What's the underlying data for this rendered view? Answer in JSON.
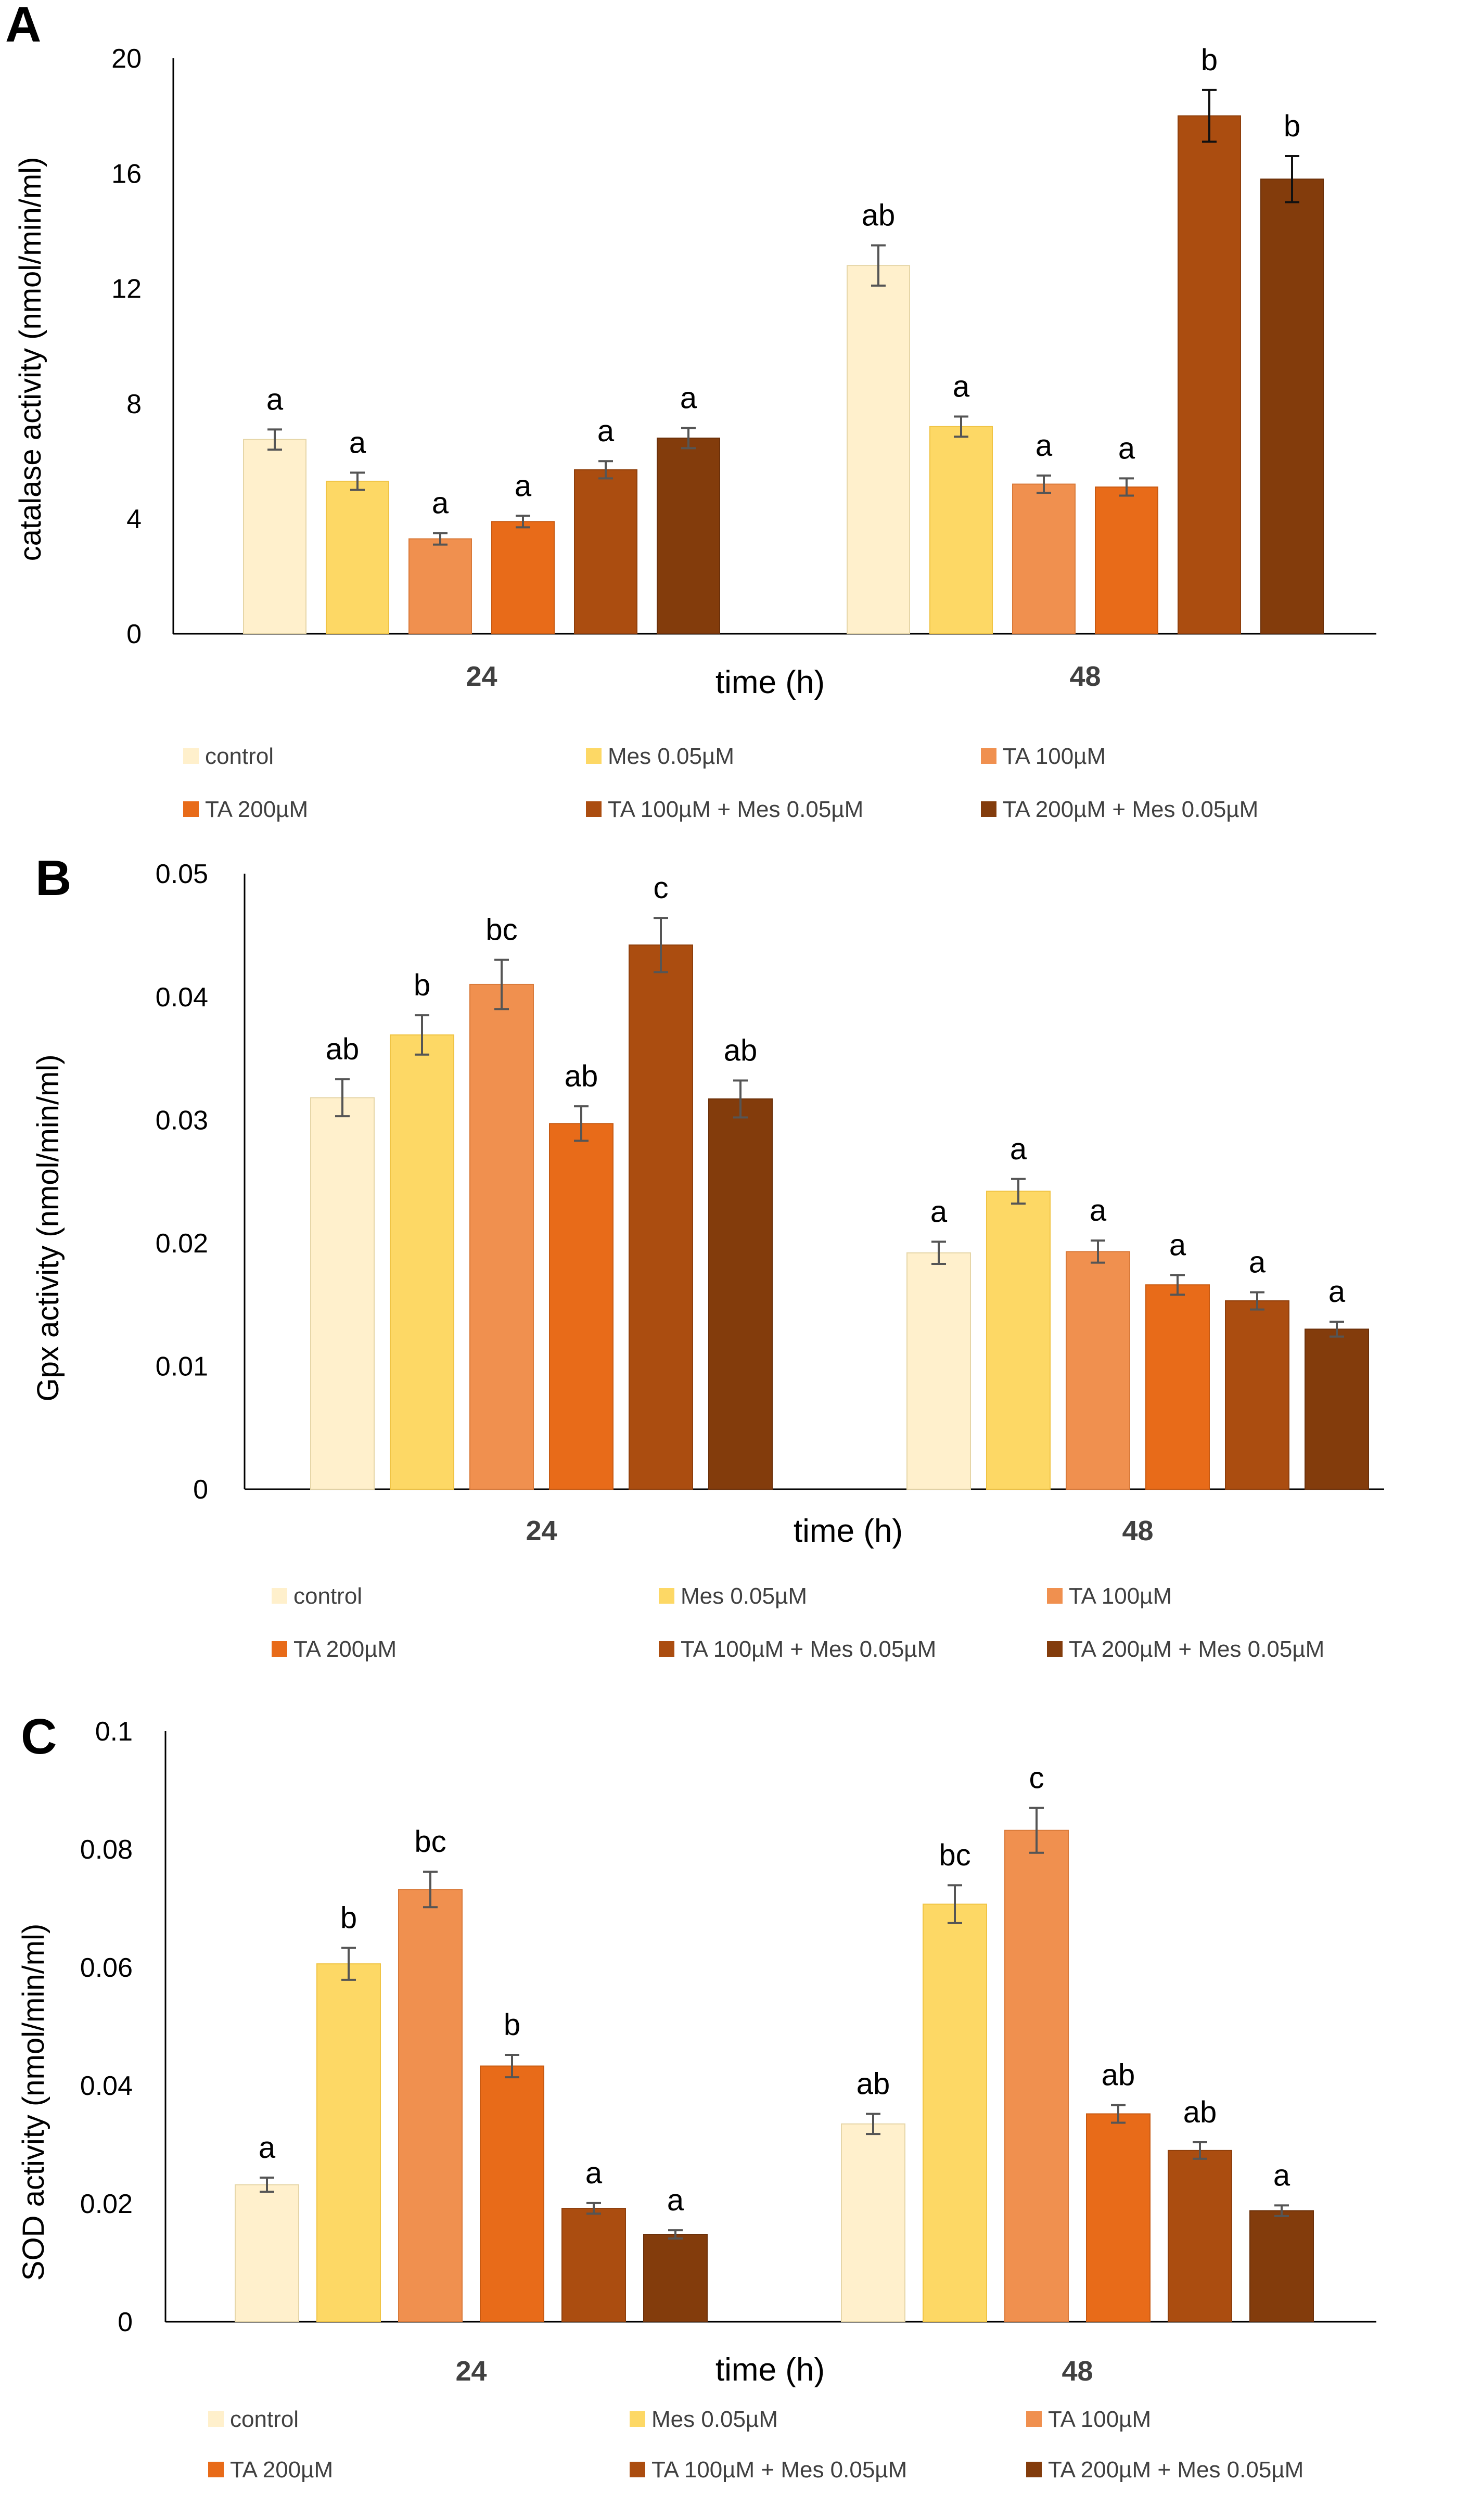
{
  "colors": {
    "control": "#fff0cc",
    "mes": "#fdd865",
    "ta100": "#f0904f",
    "ta200": "#e86b19",
    "ta100mes": "#ab4d10",
    "ta200mes": "#833c0c",
    "axis": "#000000",
    "error_bar": "#555555",
    "text": "#000000"
  },
  "legend": {
    "entries": [
      "control",
      "Mes 0.05µM",
      "TA 100µM",
      "TA 200µM",
      "TA 100µM + Mes 0.05µM",
      "TA 200µM + Mes 0.05µM"
    ]
  },
  "chart_data": [
    {
      "panel": "A",
      "type": "bar",
      "title": "",
      "xlabel": "time (h)",
      "ylabel": "catalase activity (nmol/min/ml)",
      "ylim": [
        0,
        20
      ],
      "yticks": [
        "0",
        "4",
        "8",
        "12",
        "16",
        "20"
      ],
      "ytick_values": [
        0,
        4,
        8,
        12,
        16,
        20
      ],
      "categories": [
        "24",
        "48"
      ],
      "series": [
        {
          "name": "control",
          "values": [
            6.75,
            12.8
          ],
          "errors": [
            0.35,
            0.7
          ],
          "labels": [
            "a",
            "ab"
          ]
        },
        {
          "name": "Mes 0.05µM",
          "values": [
            5.3,
            7.2
          ],
          "errors": [
            0.3,
            0.35
          ],
          "labels": [
            "a",
            "a"
          ]
        },
        {
          "name": "TA 100µM",
          "values": [
            3.3,
            5.2
          ],
          "errors": [
            0.2,
            0.3
          ],
          "labels": [
            "a",
            "a"
          ]
        },
        {
          "name": "TA 200µM",
          "values": [
            3.9,
            5.1
          ],
          "errors": [
            0.2,
            0.3
          ],
          "labels": [
            "a",
            "a"
          ]
        },
        {
          "name": "TA 100µM + Mes 0.05µM",
          "values": [
            5.7,
            18.0
          ],
          "errors": [
            0.3,
            0.9
          ],
          "labels": [
            "a",
            "b"
          ]
        },
        {
          "name": "TA 200µM + Mes 0.05µM",
          "values": [
            6.8,
            15.8
          ],
          "errors": [
            0.35,
            0.8
          ],
          "labels": [
            "a",
            "b"
          ]
        }
      ]
    },
    {
      "panel": "B",
      "type": "bar",
      "title": "",
      "xlabel": "time (h)",
      "ylabel": "Gpx activity (nmol/min/ml)",
      "ylim": [
        0,
        0.05
      ],
      "yticks": [
        "0",
        "0.01",
        "0.02",
        "0.03",
        "0.04",
        "0.05"
      ],
      "ytick_values": [
        0,
        0.01,
        0.02,
        0.03,
        0.04,
        0.05
      ],
      "categories": [
        "24",
        "48"
      ],
      "series": [
        {
          "name": "control",
          "values": [
            0.0318,
            0.0192
          ],
          "errors": [
            0.0015,
            0.0009
          ],
          "labels": [
            "ab",
            "a"
          ]
        },
        {
          "name": "Mes 0.05µM",
          "values": [
            0.0369,
            0.0242
          ],
          "errors": [
            0.0016,
            0.001
          ],
          "labels": [
            "b",
            "a"
          ]
        },
        {
          "name": "TA 100µM",
          "values": [
            0.041,
            0.0193
          ],
          "errors": [
            0.002,
            0.0009
          ],
          "labels": [
            "bc",
            "a"
          ]
        },
        {
          "name": "TA 200µM",
          "values": [
            0.0297,
            0.0166
          ],
          "errors": [
            0.0014,
            0.0008
          ],
          "labels": [
            "ab",
            "a"
          ]
        },
        {
          "name": "TA 100µM + Mes 0.05µM",
          "values": [
            0.0442,
            0.0153
          ],
          "errors": [
            0.0022,
            0.0007
          ],
          "labels": [
            "c",
            "a"
          ]
        },
        {
          "name": "TA 200µM + Mes 0.05µM",
          "values": [
            0.0317,
            0.013
          ],
          "errors": [
            0.0015,
            0.0006
          ],
          "labels": [
            "ab",
            "a"
          ]
        }
      ]
    },
    {
      "panel": "C",
      "type": "bar",
      "title": "",
      "xlabel": "time (h)",
      "ylabel": "SOD activity (nmol/min/ml)",
      "ylim": [
        0,
        0.1
      ],
      "yticks": [
        "0",
        "0.02",
        "0.04",
        "0.06",
        "0.08",
        "0.1"
      ],
      "ytick_values": [
        0,
        0.02,
        0.04,
        0.06,
        0.08,
        0.1
      ],
      "categories": [
        "24",
        "48"
      ],
      "series": [
        {
          "name": "control",
          "values": [
            0.0232,
            0.0335
          ],
          "errors": [
            0.0012,
            0.0017
          ],
          "labels": [
            "a",
            "ab"
          ]
        },
        {
          "name": "Mes 0.05µM",
          "values": [
            0.0606,
            0.0707
          ],
          "errors": [
            0.0027,
            0.0032
          ],
          "labels": [
            "b",
            "bc"
          ]
        },
        {
          "name": "TA 100µM",
          "values": [
            0.0732,
            0.0832
          ],
          "errors": [
            0.003,
            0.0038
          ],
          "labels": [
            "bc",
            "c"
          ]
        },
        {
          "name": "TA 200µM",
          "values": [
            0.0433,
            0.0352
          ],
          "errors": [
            0.0019,
            0.0015
          ],
          "labels": [
            "b",
            "ab"
          ]
        },
        {
          "name": "TA 100µM + Mes 0.05µM",
          "values": [
            0.0192,
            0.029
          ],
          "errors": [
            0.0009,
            0.0014
          ],
          "labels": [
            "a",
            "ab"
          ]
        },
        {
          "name": "TA 200µM + Mes 0.05µM",
          "values": [
            0.0148,
            0.0188
          ],
          "errors": [
            0.0007,
            0.0009
          ],
          "labels": [
            "a",
            "a"
          ]
        }
      ]
    }
  ]
}
